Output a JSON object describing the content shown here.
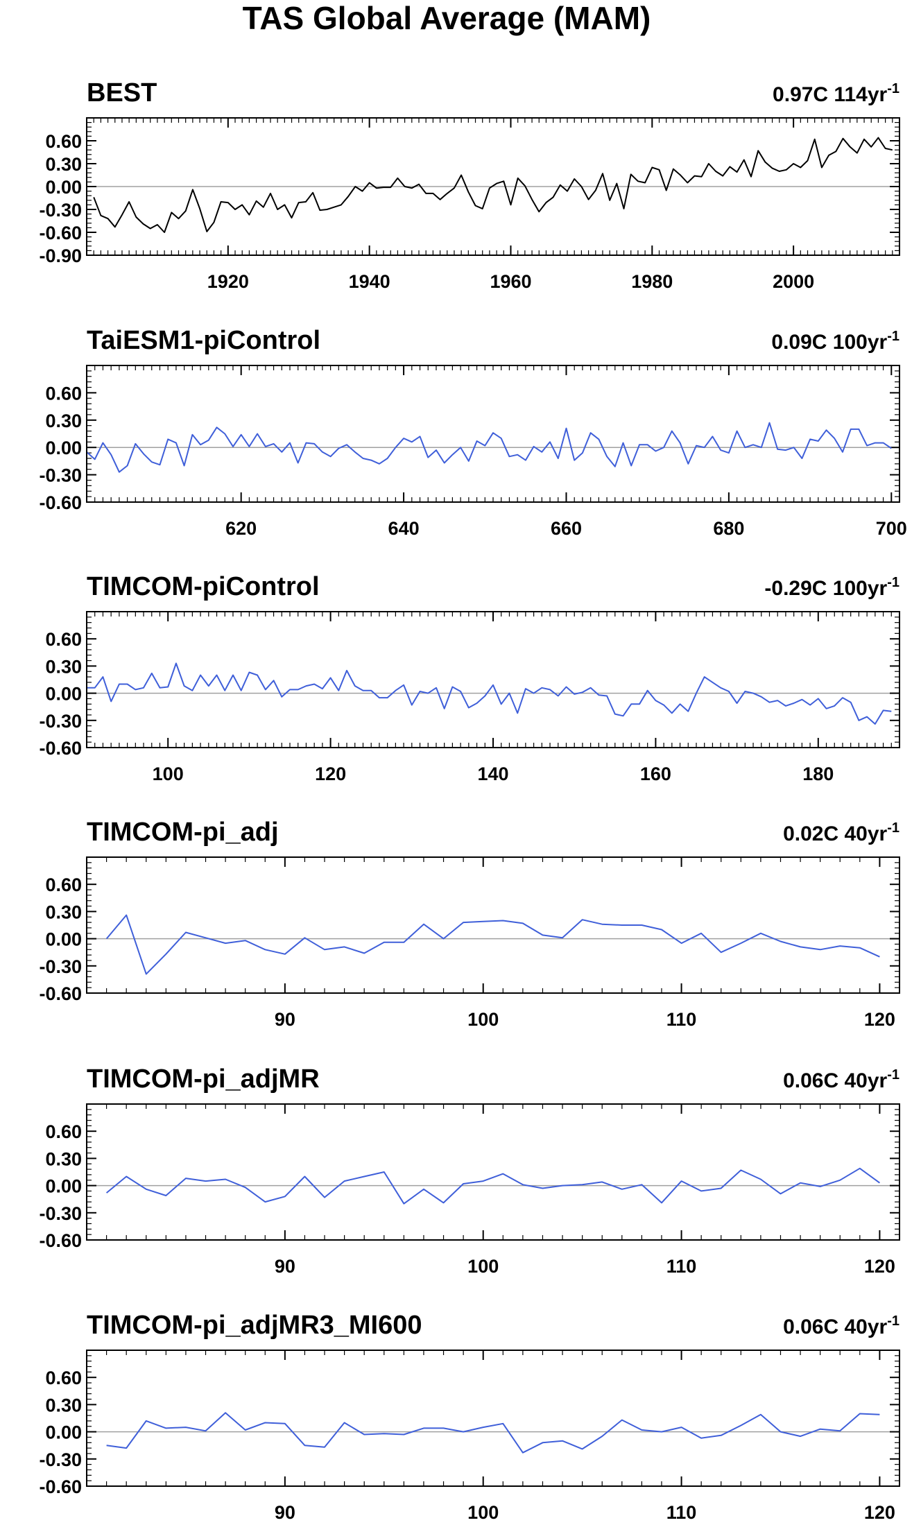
{
  "figure": {
    "title": "TAS Global Average (MAM)"
  },
  "colors": {
    "obs_line": "#000000",
    "model_line": "#3f5fd9",
    "zero_line": "#a0a0a0",
    "frame": "#000000"
  },
  "chart_data": [
    {
      "type": "line",
      "title": "BEST",
      "trend_label": "0.97C 114yr",
      "trend_superscript": "-1",
      "xlim": [
        1900,
        2015
      ],
      "ylim": [
        -0.9,
        0.9
      ],
      "yticks": [
        -0.9,
        -0.6,
        -0.3,
        0.0,
        0.3,
        0.6
      ],
      "ytick_labels": [
        "-0.90",
        "-0.60",
        "-0.30",
        "0.00",
        "0.30",
        "0.60"
      ],
      "xticks": [
        1920,
        1940,
        1960,
        1980,
        2000
      ],
      "xtick_labels": [
        "1920",
        "1940",
        "1960",
        "1980",
        "2000"
      ],
      "series": [
        {
          "color": "#000000",
          "x_start": 1901,
          "values": [
            -0.14,
            -0.38,
            -0.42,
            -0.53,
            -0.37,
            -0.2,
            -0.4,
            -0.49,
            -0.55,
            -0.5,
            -0.6,
            -0.34,
            -0.42,
            -0.32,
            -0.04,
            -0.29,
            -0.59,
            -0.47,
            -0.2,
            -0.21,
            -0.3,
            -0.24,
            -0.37,
            -0.19,
            -0.27,
            -0.09,
            -0.3,
            -0.24,
            -0.41,
            -0.21,
            -0.2,
            -0.08,
            -0.31,
            -0.3,
            -0.27,
            -0.24,
            -0.13,
            0.0,
            -0.06,
            0.05,
            -0.02,
            -0.01,
            -0.01,
            0.11,
            0.0,
            -0.02,
            0.03,
            -0.09,
            -0.09,
            -0.17,
            -0.09,
            -0.02,
            0.15,
            -0.07,
            -0.25,
            -0.29,
            -0.02,
            0.04,
            0.07,
            -0.24,
            0.11,
            0.01,
            -0.17,
            -0.33,
            -0.21,
            -0.14,
            0.02,
            -0.06,
            0.1,
            0.0,
            -0.17,
            -0.05,
            0.17,
            -0.18,
            0.04,
            -0.29,
            0.16,
            0.07,
            0.05,
            0.25,
            0.22,
            -0.05,
            0.23,
            0.15,
            0.05,
            0.14,
            0.13,
            0.3,
            0.2,
            0.14,
            0.26,
            0.19,
            0.35,
            0.13,
            0.47,
            0.32,
            0.24,
            0.2,
            0.22,
            0.3,
            0.25,
            0.34,
            0.62,
            0.25,
            0.41,
            0.46,
            0.63,
            0.52,
            0.44,
            0.62,
            0.52,
            0.64,
            0.5,
            0.48
          ]
        }
      ]
    },
    {
      "type": "line",
      "title": "TaiESM1-piControl",
      "trend_label": "0.09C 100yr",
      "trend_superscript": "-1",
      "xlim": [
        601,
        701
      ],
      "ylim": [
        -0.6,
        0.9
      ],
      "yticks": [
        -0.6,
        -0.3,
        0.0,
        0.3,
        0.6
      ],
      "ytick_labels": [
        "-0.60",
        "-0.30",
        "0.00",
        "0.30",
        "0.60"
      ],
      "xticks": [
        620,
        640,
        660,
        680,
        700
      ],
      "xtick_labels": [
        "620",
        "640",
        "660",
        "680",
        "700"
      ],
      "series": [
        {
          "color": "#3f5fd9",
          "x_start": 601,
          "values": [
            -0.05,
            -0.13,
            0.05,
            -0.08,
            -0.27,
            -0.2,
            0.04,
            -0.07,
            -0.16,
            -0.19,
            0.09,
            0.05,
            -0.2,
            0.14,
            0.03,
            0.08,
            0.22,
            0.15,
            0.01,
            0.14,
            0.01,
            0.15,
            0.01,
            0.04,
            -0.05,
            0.05,
            -0.17,
            0.05,
            0.04,
            -0.05,
            -0.1,
            -0.01,
            0.03,
            -0.05,
            -0.12,
            -0.14,
            -0.18,
            -0.12,
            0.0,
            0.1,
            0.06,
            0.12,
            -0.11,
            -0.03,
            -0.17,
            -0.08,
            0.0,
            -0.15,
            0.07,
            0.02,
            0.16,
            0.1,
            -0.1,
            -0.08,
            -0.14,
            0.01,
            -0.05,
            0.06,
            -0.12,
            0.21,
            -0.14,
            -0.06,
            0.16,
            0.09,
            -0.1,
            -0.21,
            0.05,
            -0.2,
            0.03,
            0.03,
            -0.04,
            0.0,
            0.18,
            0.05,
            -0.18,
            0.02,
            0.0,
            0.12,
            -0.03,
            -0.06,
            0.18,
            0.0,
            0.03,
            0.0,
            0.27,
            -0.02,
            -0.03,
            0.0,
            -0.12,
            0.09,
            0.07,
            0.19,
            0.1,
            -0.05,
            0.2,
            0.2,
            0.02,
            0.05,
            0.05,
            -0.01
          ]
        }
      ]
    },
    {
      "type": "line",
      "title": "TIMCOM-piControl",
      "trend_label": "-0.29C 100yr",
      "trend_superscript": "-1",
      "xlim": [
        90,
        190
      ],
      "ylim": [
        -0.6,
        0.9
      ],
      "yticks": [
        -0.6,
        -0.3,
        0.0,
        0.3,
        0.6
      ],
      "ytick_labels": [
        "-0.60",
        "-0.30",
        "0.00",
        "0.30",
        "0.60"
      ],
      "xticks": [
        100,
        120,
        140,
        160,
        180
      ],
      "xtick_labels": [
        "100",
        "120",
        "140",
        "160",
        "180"
      ],
      "series": [
        {
          "color": "#3f5fd9",
          "x_start": 90,
          "values": [
            0.06,
            0.06,
            0.18,
            -0.09,
            0.1,
            0.1,
            0.04,
            0.06,
            0.22,
            0.06,
            0.07,
            0.33,
            0.08,
            0.03,
            0.2,
            0.08,
            0.2,
            0.03,
            0.2,
            0.03,
            0.23,
            0.2,
            0.04,
            0.14,
            -0.04,
            0.04,
            0.04,
            0.08,
            0.1,
            0.05,
            0.17,
            0.03,
            0.25,
            0.08,
            0.03,
            0.03,
            -0.05,
            -0.05,
            0.03,
            0.09,
            -0.13,
            0.02,
            0.0,
            0.06,
            -0.17,
            0.07,
            0.02,
            -0.16,
            -0.11,
            -0.03,
            0.09,
            -0.12,
            0.0,
            -0.22,
            0.05,
            0.0,
            0.06,
            0.04,
            -0.03,
            0.07,
            -0.01,
            0.01,
            0.06,
            -0.02,
            -0.03,
            -0.23,
            -0.25,
            -0.12,
            -0.12,
            0.03,
            -0.08,
            -0.13,
            -0.22,
            -0.12,
            -0.2,
            0.0,
            0.18,
            0.12,
            0.06,
            0.02,
            -0.11,
            0.02,
            0.0,
            -0.04,
            -0.1,
            -0.08,
            -0.14,
            -0.11,
            -0.07,
            -0.13,
            -0.06,
            -0.17,
            -0.14,
            -0.05,
            -0.1,
            -0.3,
            -0.26,
            -0.34,
            -0.19,
            -0.2
          ]
        }
      ]
    },
    {
      "type": "line",
      "title": "TIMCOM-pi_adj",
      "trend_label": "0.02C 40yr",
      "trend_superscript": "-1",
      "xlim": [
        80,
        121
      ],
      "ylim": [
        -0.6,
        0.9
      ],
      "yticks": [
        -0.6,
        -0.3,
        0.0,
        0.3,
        0.6
      ],
      "ytick_labels": [
        "-0.60",
        "-0.30",
        "0.00",
        "0.30",
        "0.60"
      ],
      "xticks": [
        90,
        100,
        110,
        120
      ],
      "xtick_labels": [
        "90",
        "100",
        "110",
        "120"
      ],
      "series": [
        {
          "color": "#3f5fd9",
          "x_start": 81,
          "values": [
            0.0,
            0.26,
            -0.39,
            -0.17,
            0.07,
            0.01,
            -0.05,
            -0.02,
            -0.12,
            -0.17,
            0.01,
            -0.12,
            -0.09,
            -0.16,
            -0.04,
            -0.04,
            0.16,
            0.0,
            0.18,
            0.19,
            0.2,
            0.17,
            0.04,
            0.01,
            0.21,
            0.16,
            0.15,
            0.15,
            0.1,
            -0.05,
            0.06,
            -0.15,
            -0.05,
            0.06,
            -0.03,
            -0.09,
            -0.12,
            -0.08,
            -0.1,
            -0.2
          ]
        }
      ]
    },
    {
      "type": "line",
      "title": "TIMCOM-pi_adjMR",
      "trend_label": "0.06C 40yr",
      "trend_superscript": "-1",
      "xlim": [
        80,
        121
      ],
      "ylim": [
        -0.6,
        0.9
      ],
      "yticks": [
        -0.6,
        -0.3,
        0.0,
        0.3,
        0.6
      ],
      "ytick_labels": [
        "-0.60",
        "-0.30",
        "0.00",
        "0.30",
        "0.60"
      ],
      "xticks": [
        90,
        100,
        110,
        120
      ],
      "xtick_labels": [
        "90",
        "100",
        "110",
        "120"
      ],
      "series": [
        {
          "color": "#3f5fd9",
          "x_start": 81,
          "values": [
            -0.08,
            0.1,
            -0.04,
            -0.11,
            0.08,
            0.05,
            0.07,
            -0.02,
            -0.18,
            -0.12,
            0.1,
            -0.13,
            0.05,
            0.1,
            0.15,
            -0.2,
            -0.04,
            -0.19,
            0.02,
            0.05,
            0.13,
            0.01,
            -0.03,
            0.0,
            0.01,
            0.04,
            -0.04,
            0.01,
            -0.19,
            0.05,
            -0.06,
            -0.03,
            0.17,
            0.07,
            -0.09,
            0.03,
            -0.01,
            0.06,
            0.19,
            0.03
          ]
        }
      ]
    },
    {
      "type": "line",
      "title": "TIMCOM-pi_adjMR3_MI600",
      "trend_label": "0.06C 40yr",
      "trend_superscript": "-1",
      "xlim": [
        80,
        121
      ],
      "ylim": [
        -0.6,
        0.9
      ],
      "yticks": [
        -0.6,
        -0.3,
        0.0,
        0.3,
        0.6
      ],
      "ytick_labels": [
        "-0.60",
        "-0.30",
        "0.00",
        "0.30",
        "0.60"
      ],
      "xticks": [
        90,
        100,
        110,
        120
      ],
      "xtick_labels": [
        "90",
        "100",
        "110",
        "120"
      ],
      "series": [
        {
          "color": "#3f5fd9",
          "x_start": 81,
          "values": [
            -0.15,
            -0.18,
            0.12,
            0.04,
            0.05,
            0.01,
            0.21,
            0.02,
            0.1,
            0.09,
            -0.15,
            -0.17,
            0.1,
            -0.03,
            -0.02,
            -0.03,
            0.04,
            0.04,
            0.0,
            0.05,
            0.09,
            -0.23,
            -0.12,
            -0.1,
            -0.19,
            -0.05,
            0.13,
            0.02,
            0.0,
            0.05,
            -0.07,
            -0.04,
            0.07,
            0.19,
            0.0,
            -0.05,
            0.03,
            0.01,
            0.2,
            0.19
          ]
        }
      ]
    }
  ]
}
